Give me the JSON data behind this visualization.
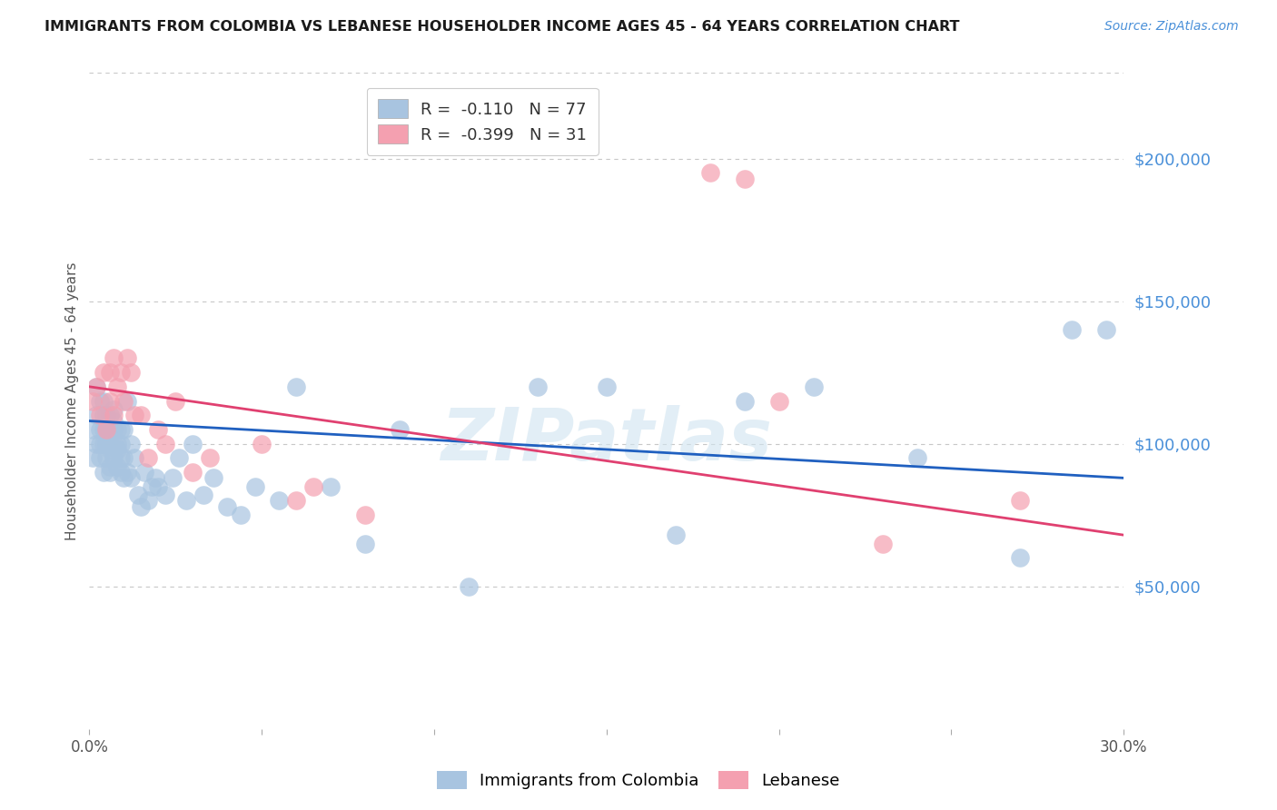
{
  "title": "IMMIGRANTS FROM COLOMBIA VS LEBANESE HOUSEHOLDER INCOME AGES 45 - 64 YEARS CORRELATION CHART",
  "source": "Source: ZipAtlas.com",
  "ylabel": "Householder Income Ages 45 - 64 years",
  "xlim": [
    0.0,
    0.3
  ],
  "ylim": [
    0,
    230000
  ],
  "yticks": [
    50000,
    100000,
    150000,
    200000
  ],
  "ytick_labels": [
    "$50,000",
    "$100,000",
    "$150,000",
    "$200,000"
  ],
  "xticks": [
    0.0,
    0.05,
    0.1,
    0.15,
    0.2,
    0.25,
    0.3
  ],
  "xtick_labels": [
    "0.0%",
    "",
    "",
    "",
    "",
    "",
    "30.0%"
  ],
  "colombia_R": -0.11,
  "colombia_N": 77,
  "lebanese_R": -0.399,
  "lebanese_N": 31,
  "colombia_color": "#a8c4e0",
  "lebanese_color": "#f4a0b0",
  "colombia_line_color": "#2060c0",
  "lebanese_line_color": "#e04070",
  "colombia_x": [
    0.001,
    0.001,
    0.002,
    0.002,
    0.002,
    0.003,
    0.003,
    0.003,
    0.003,
    0.004,
    0.004,
    0.004,
    0.004,
    0.004,
    0.005,
    0.005,
    0.005,
    0.005,
    0.006,
    0.006,
    0.006,
    0.006,
    0.006,
    0.006,
    0.007,
    0.007,
    0.007,
    0.007,
    0.007,
    0.008,
    0.008,
    0.008,
    0.008,
    0.009,
    0.009,
    0.009,
    0.009,
    0.01,
    0.01,
    0.01,
    0.011,
    0.011,
    0.012,
    0.012,
    0.013,
    0.014,
    0.015,
    0.016,
    0.017,
    0.018,
    0.019,
    0.02,
    0.022,
    0.024,
    0.026,
    0.028,
    0.03,
    0.033,
    0.036,
    0.04,
    0.044,
    0.048,
    0.055,
    0.06,
    0.07,
    0.08,
    0.09,
    0.11,
    0.13,
    0.15,
    0.17,
    0.19,
    0.21,
    0.24,
    0.27,
    0.285,
    0.295
  ],
  "colombia_y": [
    105000,
    95000,
    110000,
    100000,
    120000,
    105000,
    95000,
    100000,
    115000,
    90000,
    100000,
    110000,
    105000,
    115000,
    95000,
    100000,
    105000,
    110000,
    90000,
    92000,
    98000,
    100000,
    105000,
    110000,
    95000,
    100000,
    105000,
    108000,
    112000,
    92000,
    98000,
    100000,
    105000,
    90000,
    95000,
    100000,
    105000,
    88000,
    95000,
    105000,
    90000,
    115000,
    88000,
    100000,
    95000,
    82000,
    78000,
    90000,
    80000,
    85000,
    88000,
    85000,
    82000,
    88000,
    95000,
    80000,
    100000,
    82000,
    88000,
    78000,
    75000,
    85000,
    80000,
    120000,
    85000,
    65000,
    105000,
    50000,
    120000,
    120000,
    68000,
    115000,
    120000,
    95000,
    60000,
    140000,
    140000
  ],
  "lebanese_x": [
    0.001,
    0.002,
    0.003,
    0.004,
    0.005,
    0.006,
    0.006,
    0.007,
    0.007,
    0.008,
    0.009,
    0.01,
    0.011,
    0.012,
    0.013,
    0.015,
    0.017,
    0.02,
    0.022,
    0.025,
    0.03,
    0.035,
    0.05,
    0.06,
    0.065,
    0.08,
    0.18,
    0.19,
    0.2,
    0.23,
    0.27
  ],
  "lebanese_y": [
    115000,
    120000,
    110000,
    125000,
    105000,
    115000,
    125000,
    110000,
    130000,
    120000,
    125000,
    115000,
    130000,
    125000,
    110000,
    110000,
    95000,
    105000,
    100000,
    115000,
    90000,
    95000,
    100000,
    80000,
    85000,
    75000,
    195000,
    193000,
    115000,
    65000,
    80000
  ],
  "watermark": "ZIPatlas",
  "background_color": "#ffffff",
  "grid_color": "#c8c8c8"
}
